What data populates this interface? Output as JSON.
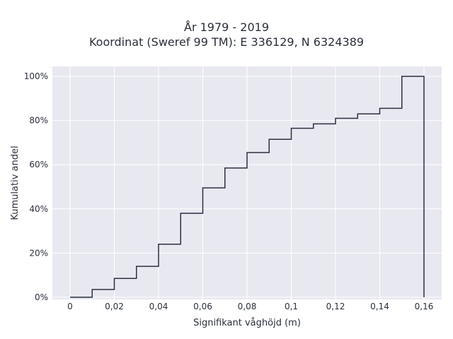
{
  "chart_data": {
    "type": "step",
    "title_lines": [
      "År 1979 - 2019",
      "Koordinat (Sweref 99 TM): E 336129, N 6324389"
    ],
    "xlabel": "Signifikant våghöjd (m)",
    "ylabel": "Kumulativ andel",
    "xlim": [
      -0.008,
      0.168
    ],
    "ylim": [
      -0.01,
      1.045
    ],
    "x_ticks": [
      0,
      0.02,
      0.04,
      0.06,
      0.08,
      0.1,
      0.12,
      0.14,
      0.16
    ],
    "x_tick_labels": [
      "0",
      "0,02",
      "0,04",
      "0,06",
      "0,08",
      "0,1",
      "0,12",
      "0,14",
      "0,16"
    ],
    "y_ticks": [
      0,
      0.2,
      0.4,
      0.6,
      0.8,
      1.0
    ],
    "y_tick_labels": [
      "0%",
      "20%",
      "40%",
      "60%",
      "80%",
      "100%"
    ],
    "grid": true,
    "line_color": "#2a3140",
    "plot_background": "#e8e8f0",
    "x": [
      0,
      0.01,
      0.02,
      0.03,
      0.04,
      0.05,
      0.06,
      0.07,
      0.08,
      0.09,
      0.1,
      0.11,
      0.12,
      0.13,
      0.14,
      0.15,
      0.16
    ],
    "y": [
      0,
      0.035,
      0.085,
      0.14,
      0.24,
      0.38,
      0.495,
      0.585,
      0.655,
      0.715,
      0.765,
      0.785,
      0.81,
      0.83,
      0.855,
      1.0,
      0
    ]
  }
}
